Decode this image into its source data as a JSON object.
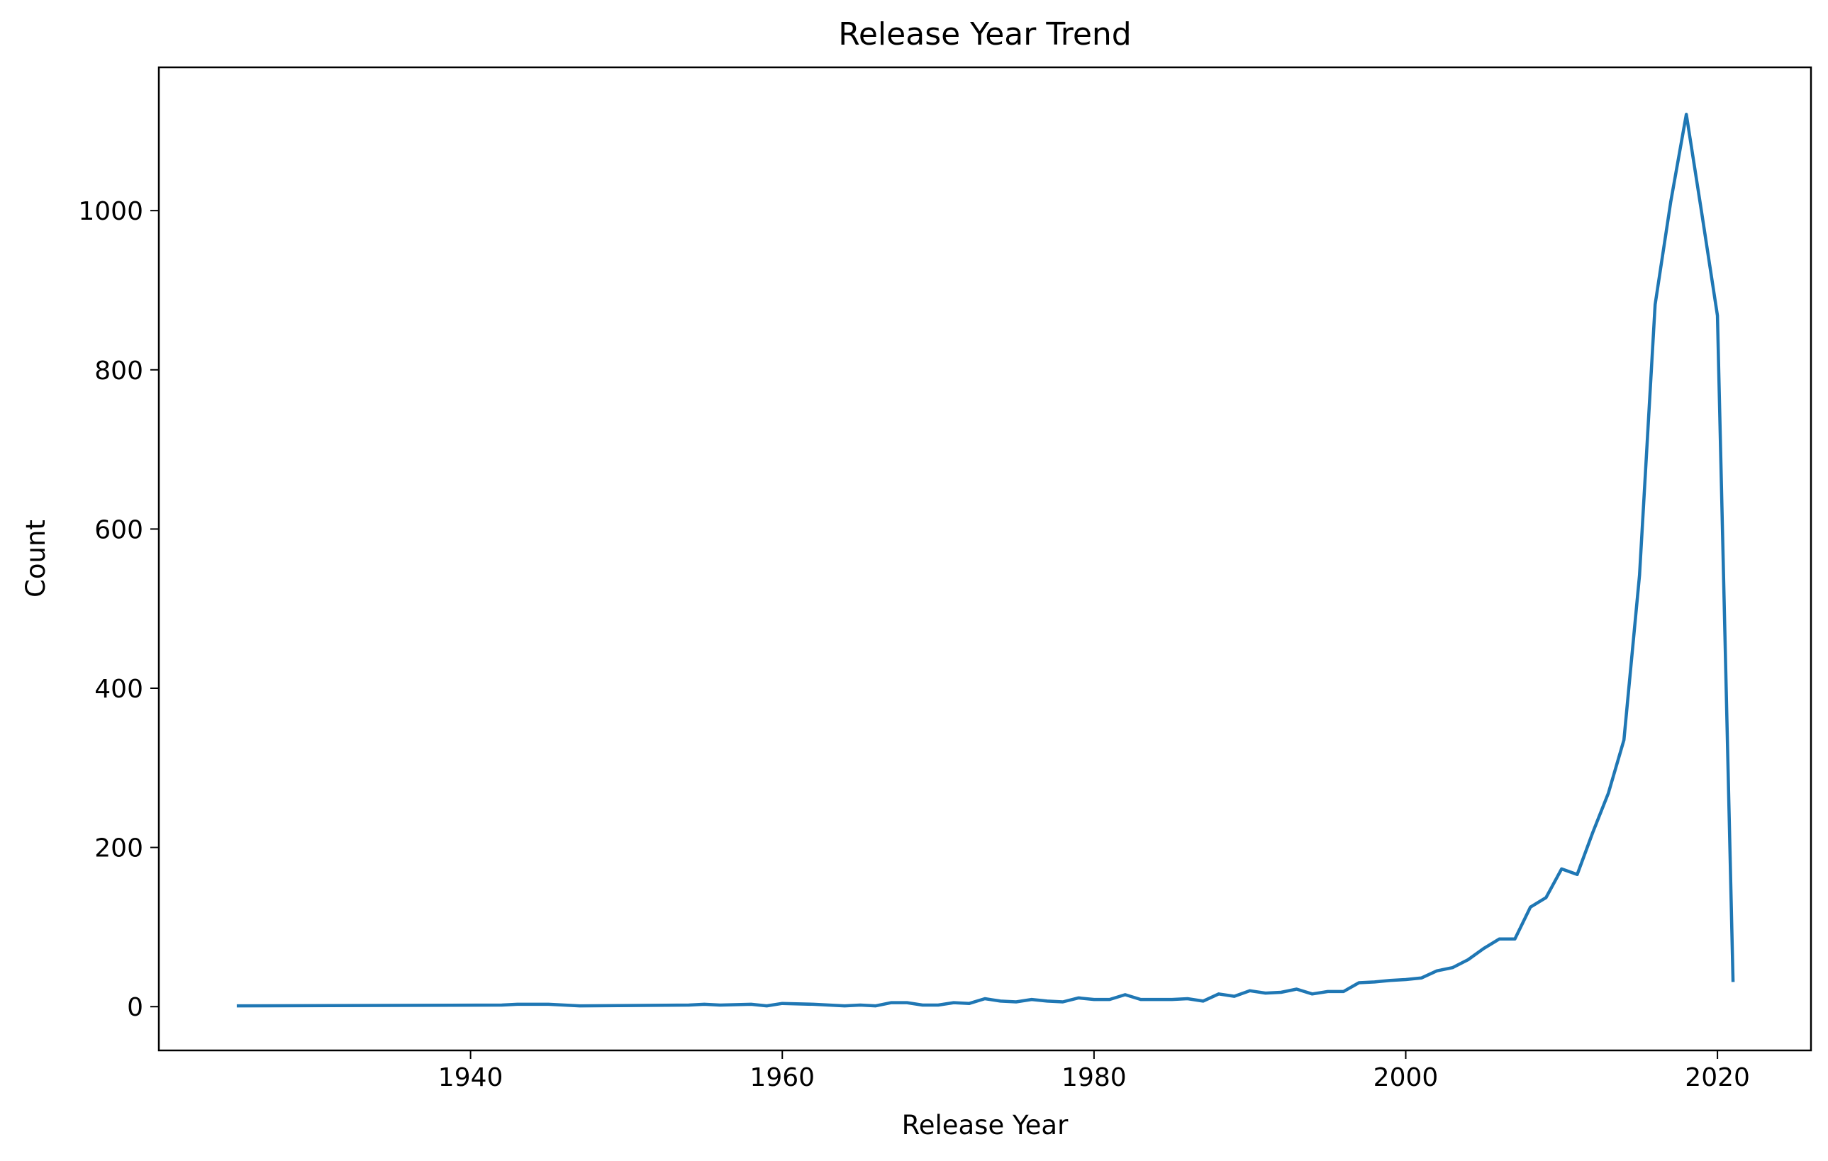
{
  "chart_data": {
    "type": "line",
    "title": "Release Year Trend",
    "xlabel": "Release Year",
    "ylabel": "Count",
    "xlim": [
      1920,
      2026
    ],
    "ylim": [
      -55,
      1180
    ],
    "xticks": [
      1940,
      1960,
      1980,
      2000,
      2020
    ],
    "yticks": [
      0,
      200,
      400,
      600,
      800,
      1000
    ],
    "grid": false,
    "legend": "none",
    "line_color": "#1f77b4",
    "series": [
      {
        "x": [
          1925,
          1942,
          1943,
          1945,
          1947,
          1954,
          1955,
          1956,
          1958,
          1959,
          1960,
          1962,
          1964,
          1965,
          1966,
          1967,
          1968,
          1969,
          1970,
          1971,
          1972,
          1973,
          1974,
          1975,
          1976,
          1977,
          1978,
          1979,
          1980,
          1981,
          1982,
          1983,
          1984,
          1985,
          1986,
          1987,
          1988,
          1989,
          1990,
          1991,
          1992,
          1993,
          1994,
          1995,
          1996,
          1997,
          1998,
          1999,
          2000,
          2001,
          2002,
          2003,
          2004,
          2005,
          2006,
          2007,
          2008,
          2009,
          2010,
          2011,
          2012,
          2013,
          2014,
          2015,
          2016,
          2017,
          2018,
          2019,
          2020,
          2021
        ],
        "values": [
          1,
          2,
          3,
          3,
          1,
          2,
          3,
          2,
          3,
          1,
          4,
          3,
          1,
          2,
          1,
          5,
          5,
          2,
          2,
          5,
          4,
          10,
          7,
          6,
          9,
          7,
          6,
          11,
          9,
          9,
          15,
          9,
          9,
          9,
          10,
          7,
          16,
          13,
          20,
          17,
          18,
          22,
          16,
          19,
          19,
          30,
          31,
          33,
          34,
          36,
          45,
          49,
          59,
          73,
          85,
          85,
          125,
          137,
          173,
          166,
          219,
          268,
          335,
          542,
          882,
          1011,
          1121,
          996,
          868,
          31
        ]
      }
    ]
  }
}
